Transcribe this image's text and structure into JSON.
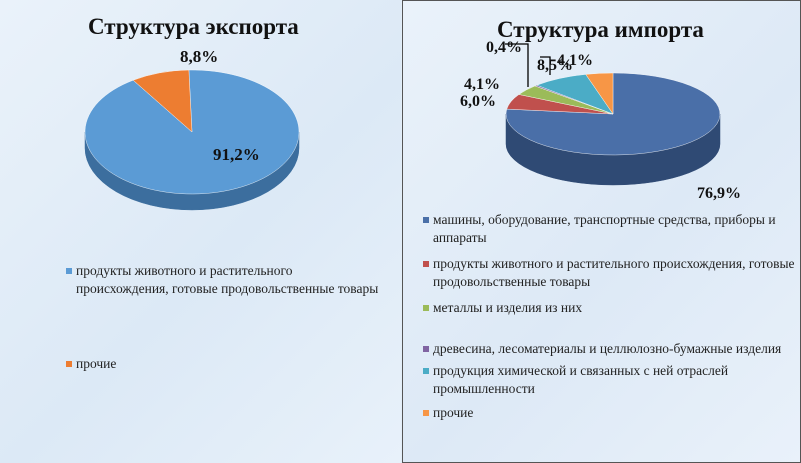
{
  "export": {
    "title": "Структура экспорта",
    "legend": [
      "продукты животного и растительного происхождения, готовые продовольственные товары",
      "прочие"
    ]
  },
  "import": {
    "title": "Структура импорта",
    "legend": [
      "машины, оборудование, транспортные средства, приборы и аппараты",
      "продукты животного и растительного происхождения, готовые продовольственные товары",
      "металлы и изделия из них",
      "древесина, лесоматериалы и целлюлозно-бумажные изделия",
      "продукция химической и связанных с ней отраслей промышленности",
      "прочие"
    ]
  },
  "chart_data": [
    {
      "type": "pie",
      "title": "Структура экспорта",
      "categories": [
        "продукты животного и растительного происхождения, готовые продовольственные товары",
        "прочие"
      ],
      "values": [
        91.2,
        8.8
      ],
      "labels": [
        "91,2%",
        "8,8%"
      ],
      "colors": [
        "#5b9bd5",
        "#ed7d31"
      ],
      "side_colors": [
        "#3c6e9e",
        "#a8551c"
      ],
      "style": "3d",
      "legend_position": "bottom"
    },
    {
      "type": "pie",
      "title": "Структура импорта",
      "categories": [
        "машины, оборудование, транспортные средства, приборы и аппараты",
        "продукты животного и растительного происхождения, готовые продовольственные товары",
        "металлы и изделия из них",
        "древесина, лесоматериалы и целлюлозно-бумажные изделия",
        "продукция химической и связанных с ней отраслей промышленности",
        "прочие"
      ],
      "values": [
        76.9,
        6.0,
        4.1,
        0.4,
        8.5,
        4.1
      ],
      "labels": [
        "76,9%",
        "6,0%",
        "4,1%",
        "0,4%",
        "8,5%",
        "4,1%"
      ],
      "colors": [
        "#4a6fa8",
        "#c0504d",
        "#9bbb59",
        "#8064a2",
        "#4bacc6",
        "#f79646"
      ],
      "side_colors": [
        "#2f4a74",
        "#8a3533",
        "#6e8a3c",
        "#5a4475",
        "#2f7f95",
        "#b86a2a"
      ],
      "style": "3d",
      "legend_position": "bottom"
    }
  ]
}
